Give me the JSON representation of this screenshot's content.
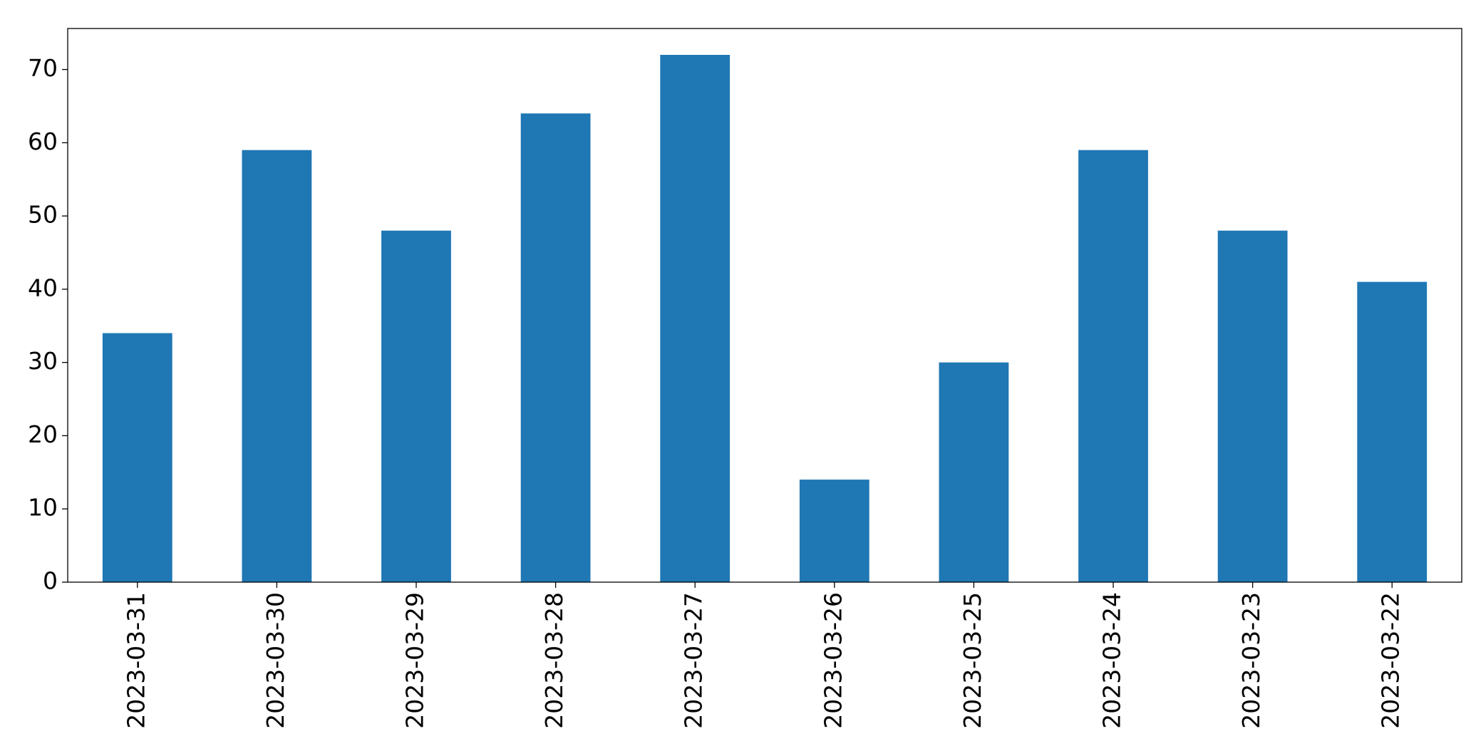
{
  "chart_data": {
    "type": "bar",
    "categories": [
      "2023-03-31",
      "2023-03-30",
      "2023-03-29",
      "2023-03-28",
      "2023-03-27",
      "2023-03-26",
      "2023-03-25",
      "2023-03-24",
      "2023-03-23",
      "2023-03-22"
    ],
    "values": [
      34,
      59,
      48,
      64,
      72,
      14,
      30,
      59,
      48,
      41
    ],
    "color": "#1f77b4",
    "ylim": [
      0,
      75.6
    ],
    "yticks": [
      0,
      10,
      20,
      30,
      40,
      50,
      60,
      70
    ],
    "grid": false
  }
}
